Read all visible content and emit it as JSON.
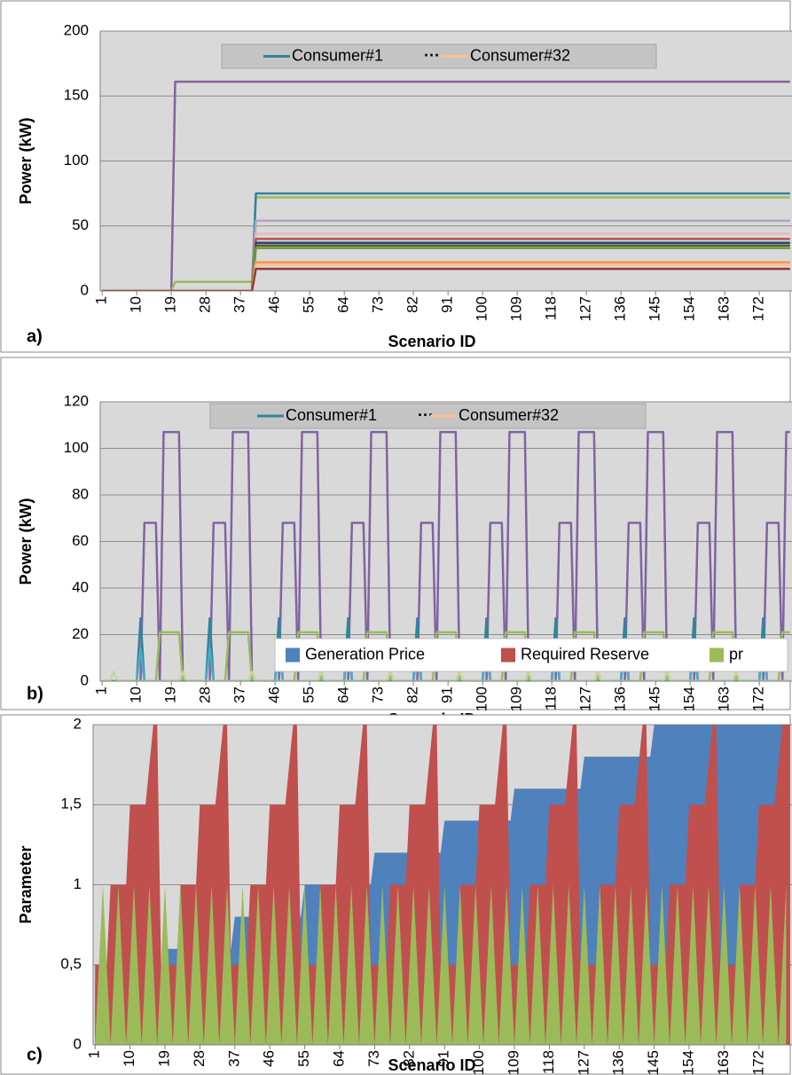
{
  "chart_data": [
    {
      "type": "line",
      "panel_label": "a)",
      "ylabel": "Power (kW)",
      "xlabel": "Scenario ID",
      "xlim": [
        0.5,
        180.5
      ],
      "xticks": [
        1,
        10,
        19,
        28,
        37,
        46,
        55,
        64,
        73,
        82,
        91,
        100,
        109,
        118,
        127,
        136,
        145,
        154,
        163,
        172
      ],
      "ylim": [
        0,
        200
      ],
      "yticks": [
        0,
        50,
        100,
        150,
        200
      ],
      "grid": true,
      "legend_labels": [
        "Consumer#1",
        "···",
        "Consumer#32"
      ],
      "legend_colors": [
        "#31849b",
        null,
        "#fac090"
      ],
      "x": [
        1,
        19,
        20,
        40,
        41,
        180
      ],
      "series": [
        {
          "color": "#8064a2",
          "values": [
            0,
            0,
            161,
            161,
            161,
            161
          ]
        },
        {
          "color": "#9bbb59",
          "values": [
            0,
            0,
            7,
            7,
            72,
            72
          ]
        },
        {
          "color": "#31849b",
          "values": [
            0,
            0,
            0,
            0,
            75,
            75
          ]
        },
        {
          "color": "#b3a2c7",
          "values": [
            0,
            0,
            0,
            0,
            54,
            54
          ]
        },
        {
          "color": "#e6b9b8",
          "values": [
            0,
            0,
            0,
            0,
            44,
            44
          ]
        },
        {
          "color": "#c0504d",
          "values": [
            0,
            0,
            0,
            0,
            40,
            40
          ]
        },
        {
          "color": "#1f497d",
          "values": [
            0,
            0,
            0,
            0,
            37,
            37
          ]
        },
        {
          "color": "#4f6228",
          "values": [
            0,
            0,
            0,
            0,
            35,
            35
          ]
        },
        {
          "color": "#76923c",
          "values": [
            0,
            0,
            0,
            0,
            33,
            33
          ]
        },
        {
          "color": "#f79646",
          "values": [
            0,
            0,
            0,
            0,
            22,
            22
          ]
        },
        {
          "color": "#fac090",
          "values": [
            0,
            0,
            0,
            0,
            20,
            20
          ]
        },
        {
          "color": "#953735",
          "values": [
            0,
            0,
            0,
            0,
            17,
            17
          ]
        }
      ]
    },
    {
      "type": "line",
      "panel_label": "b)",
      "ylabel": "Power (kW)",
      "xlabel": "Scenario ID",
      "xlim": [
        0.5,
        180.5
      ],
      "xticks": [
        1,
        10,
        19,
        28,
        37,
        46,
        55,
        64,
        73,
        82,
        91,
        100,
        109,
        118,
        127,
        136,
        145,
        154,
        163,
        172
      ],
      "ylim": [
        0,
        120
      ],
      "yticks": [
        0,
        20,
        40,
        60,
        80,
        100,
        120
      ],
      "grid": true,
      "legend_labels": [
        "Consumer#1",
        "···",
        "Consumer#32"
      ],
      "legend_colors": [
        "#31849b",
        null,
        "#fac090"
      ],
      "series": [
        {
          "color": "#8064a2",
          "x": [
            1,
            11,
            12,
            15,
            16,
            17,
            21,
            22,
            29,
            30,
            33,
            34,
            35,
            39,
            40,
            47,
            48,
            51,
            52,
            53,
            57,
            58,
            65,
            66,
            69,
            70,
            71,
            75,
            76,
            83,
            84,
            87,
            88,
            89,
            93,
            94,
            101,
            102,
            105,
            106,
            107,
            111,
            112,
            119,
            120,
            123,
            124,
            125,
            129,
            130,
            137,
            138,
            141,
            142,
            143,
            147,
            148,
            155,
            156,
            159,
            160,
            161,
            165,
            166,
            173,
            174,
            177,
            178,
            179,
            180
          ],
          "values": [
            0,
            0,
            68,
            68,
            0,
            107,
            107,
            0,
            0,
            68,
            68,
            0,
            107,
            107,
            0,
            0,
            68,
            68,
            0,
            107,
            107,
            0,
            0,
            68,
            68,
            0,
            107,
            107,
            0,
            0,
            68,
            68,
            0,
            107,
            107,
            0,
            0,
            68,
            68,
            0,
            107,
            107,
            0,
            0,
            68,
            68,
            0,
            107,
            107,
            0,
            0,
            68,
            68,
            0,
            107,
            107,
            0,
            0,
            68,
            68,
            0,
            107,
            107,
            0,
            0,
            68,
            68,
            0,
            107,
            107
          ]
        },
        {
          "color": "#9bbb59",
          "x": [
            1,
            15,
            16,
            21,
            22,
            33,
            34,
            39,
            40,
            51,
            52,
            57,
            58,
            69,
            70,
            75,
            76,
            87,
            88,
            93,
            94,
            105,
            106,
            111,
            112,
            123,
            124,
            129,
            130,
            141,
            142,
            147,
            148,
            159,
            160,
            165,
            166,
            177,
            178,
            180
          ],
          "values": [
            0,
            0,
            21,
            21,
            0,
            0,
            21,
            21,
            0,
            0,
            21,
            21,
            0,
            0,
            21,
            21,
            0,
            0,
            21,
            21,
            0,
            0,
            21,
            21,
            0,
            0,
            21,
            21,
            0,
            0,
            21,
            21,
            0,
            0,
            21,
            21,
            0,
            0,
            21,
            21
          ]
        },
        {
          "color": "#31849b",
          "x": [
            1,
            10,
            11,
            12,
            28,
            29,
            30,
            46,
            47,
            48,
            64,
            65,
            66,
            82,
            83,
            84,
            100,
            101,
            102,
            118,
            119,
            120,
            136,
            137,
            138,
            154,
            155,
            156,
            172,
            173,
            174,
            180
          ],
          "values": [
            0,
            0,
            27,
            0,
            0,
            27,
            0,
            0,
            27,
            0,
            0,
            27,
            0,
            0,
            27,
            0,
            0,
            27,
            0,
            0,
            27,
            0,
            0,
            27,
            0,
            0,
            27,
            0,
            0,
            27,
            0,
            0
          ]
        },
        {
          "color": "#4bacc6",
          "x": [
            1,
            10,
            11,
            12,
            28,
            29,
            30,
            46,
            47,
            48,
            64,
            65,
            66,
            82,
            83,
            84,
            100,
            101,
            102,
            118,
            119,
            120,
            136,
            137,
            138,
            154,
            155,
            156,
            172,
            173,
            174,
            180
          ],
          "values": [
            0,
            0,
            14,
            0,
            0,
            14,
            0,
            0,
            14,
            0,
            0,
            14,
            0,
            0,
            14,
            0,
            0,
            14,
            0,
            0,
            14,
            0,
            0,
            14,
            0,
            0,
            14,
            0,
            0,
            14,
            0,
            0
          ]
        },
        {
          "color": "#c3d69b",
          "x": [
            1,
            3,
            4,
            5,
            21,
            22,
            23,
            39,
            40,
            41,
            57,
            58,
            59,
            75,
            76,
            77,
            93,
            94,
            95,
            111,
            112,
            113,
            129,
            130,
            131,
            147,
            148,
            149,
            165,
            166,
            167,
            180
          ],
          "values": [
            0,
            0,
            4,
            0,
            0,
            4,
            0,
            0,
            4,
            0,
            0,
            4,
            0,
            0,
            4,
            0,
            0,
            4,
            0,
            0,
            4,
            0,
            0,
            4,
            0,
            0,
            4,
            0,
            0,
            4,
            0,
            0
          ]
        }
      ]
    },
    {
      "type": "area",
      "panel_label": "c)",
      "ylabel": "Parameter",
      "xlabel": "Scenario ID",
      "xlim": [
        0.5,
        180.5
      ],
      "xticks": [
        1,
        10,
        19,
        28,
        37,
        46,
        55,
        64,
        73,
        82,
        91,
        100,
        109,
        118,
        127,
        136,
        145,
        154,
        163,
        172
      ],
      "ylim": [
        0,
        2
      ],
      "yticks": [
        0,
        {
          "value": 0.5,
          "label": "0,5"
        },
        1,
        {
          "value": 1.5,
          "label": "1,5"
        },
        2
      ],
      "grid": true,
      "series": [
        {
          "name": "Generation Price",
          "color": "#4f81bd",
          "x": [
            1,
            18,
            19,
            36,
            37,
            54,
            55,
            72,
            73,
            90,
            91,
            108,
            109,
            126,
            127,
            144,
            145,
            162,
            163,
            180
          ],
          "values": [
            0.4,
            0.4,
            0.6,
            0.6,
            0.8,
            0.8,
            1,
            1,
            1.2,
            1.2,
            1.4,
            1.4,
            1.6,
            1.6,
            1.8,
            1.8,
            2,
            2,
            2,
            2
          ]
        },
        {
          "name": "Required Reserve",
          "color": "#c0504d",
          "x": [
            1,
            4,
            5,
            9,
            10,
            14,
            16,
            17,
            18,
            19,
            22,
            23,
            27,
            28,
            32,
            34,
            35,
            36,
            37,
            40,
            41,
            45,
            46,
            50,
            52,
            53,
            54,
            55,
            58,
            59,
            63,
            64,
            68,
            70,
            71,
            72,
            73,
            76,
            77,
            81,
            82,
            86,
            88,
            89,
            90,
            91,
            94,
            95,
            99,
            100,
            104,
            106,
            107,
            108,
            109,
            112,
            113,
            117,
            118,
            122,
            124,
            125,
            126,
            127,
            130,
            131,
            135,
            136,
            140,
            142,
            143,
            144,
            145,
            148,
            149,
            153,
            154,
            158,
            160,
            161,
            162,
            163,
            166,
            167,
            171,
            172,
            176,
            178,
            179,
            180
          ],
          "values": [
            0.5,
            0.5,
            1,
            1,
            1.5,
            1.5,
            2,
            2,
            0.5,
            0.5,
            0.5,
            1,
            1,
            1.5,
            1.5,
            2,
            2,
            0.5,
            0.5,
            0.5,
            1,
            1,
            1.5,
            1.5,
            2,
            2,
            0.5,
            0.5,
            0.5,
            1,
            1,
            1.5,
            1.5,
            2,
            2,
            0.5,
            0.5,
            0.5,
            1,
            1,
            1.5,
            1.5,
            2,
            2,
            0.5,
            0.5,
            0.5,
            1,
            1,
            1.5,
            1.5,
            2,
            2,
            0.5,
            0.5,
            0.5,
            1,
            1,
            1.5,
            1.5,
            2,
            2,
            0.5,
            0.5,
            0.5,
            1,
            1,
            1.5,
            1.5,
            2,
            2,
            0.5,
            0.5,
            0.5,
            1,
            1,
            1.5,
            1.5,
            2,
            2,
            0.5,
            0.5,
            0.5,
            1,
            1,
            1.5,
            1.5,
            2,
            2,
            2
          ]
        },
        {
          "name": "pr",
          "color": "#9bbb59",
          "x": [
            1,
            3,
            5,
            7,
            9,
            11,
            13,
            15,
            17,
            19,
            21,
            23,
            25,
            27,
            29,
            31,
            33,
            35,
            37,
            39,
            41,
            43,
            45,
            47,
            49,
            51,
            53,
            55,
            57,
            59,
            61,
            63,
            65,
            67,
            69,
            71,
            73,
            75,
            77,
            79,
            81,
            83,
            85,
            87,
            89,
            91,
            93,
            95,
            97,
            99,
            101,
            103,
            105,
            107,
            109,
            111,
            113,
            115,
            117,
            119,
            121,
            123,
            125,
            127,
            129,
            131,
            133,
            135,
            137,
            139,
            141,
            143,
            145,
            147,
            149,
            151,
            153,
            155,
            157,
            159,
            161,
            163,
            165,
            167,
            169,
            171,
            173,
            175,
            177,
            179
          ],
          "values": [
            0,
            1,
            0,
            1,
            0,
            1,
            0,
            1,
            0,
            1,
            0,
            1,
            0,
            1,
            0,
            1,
            0,
            1,
            0,
            1,
            0,
            1,
            0,
            1,
            0,
            1,
            0,
            1,
            0,
            1,
            0,
            1,
            0,
            1,
            0,
            1,
            0,
            1,
            0,
            1,
            0,
            1,
            0,
            1,
            0,
            1,
            0,
            1,
            0,
            1,
            0,
            1,
            0,
            1,
            0,
            1,
            0,
            1,
            0,
            1,
            0,
            1,
            0,
            1,
            0,
            1,
            0,
            1,
            0,
            1,
            0,
            1,
            0,
            1,
            0,
            1,
            0,
            1,
            0,
            1,
            0,
            1,
            0,
            1,
            0,
            1,
            0,
            1,
            0,
            1
          ]
        }
      ]
    }
  ]
}
